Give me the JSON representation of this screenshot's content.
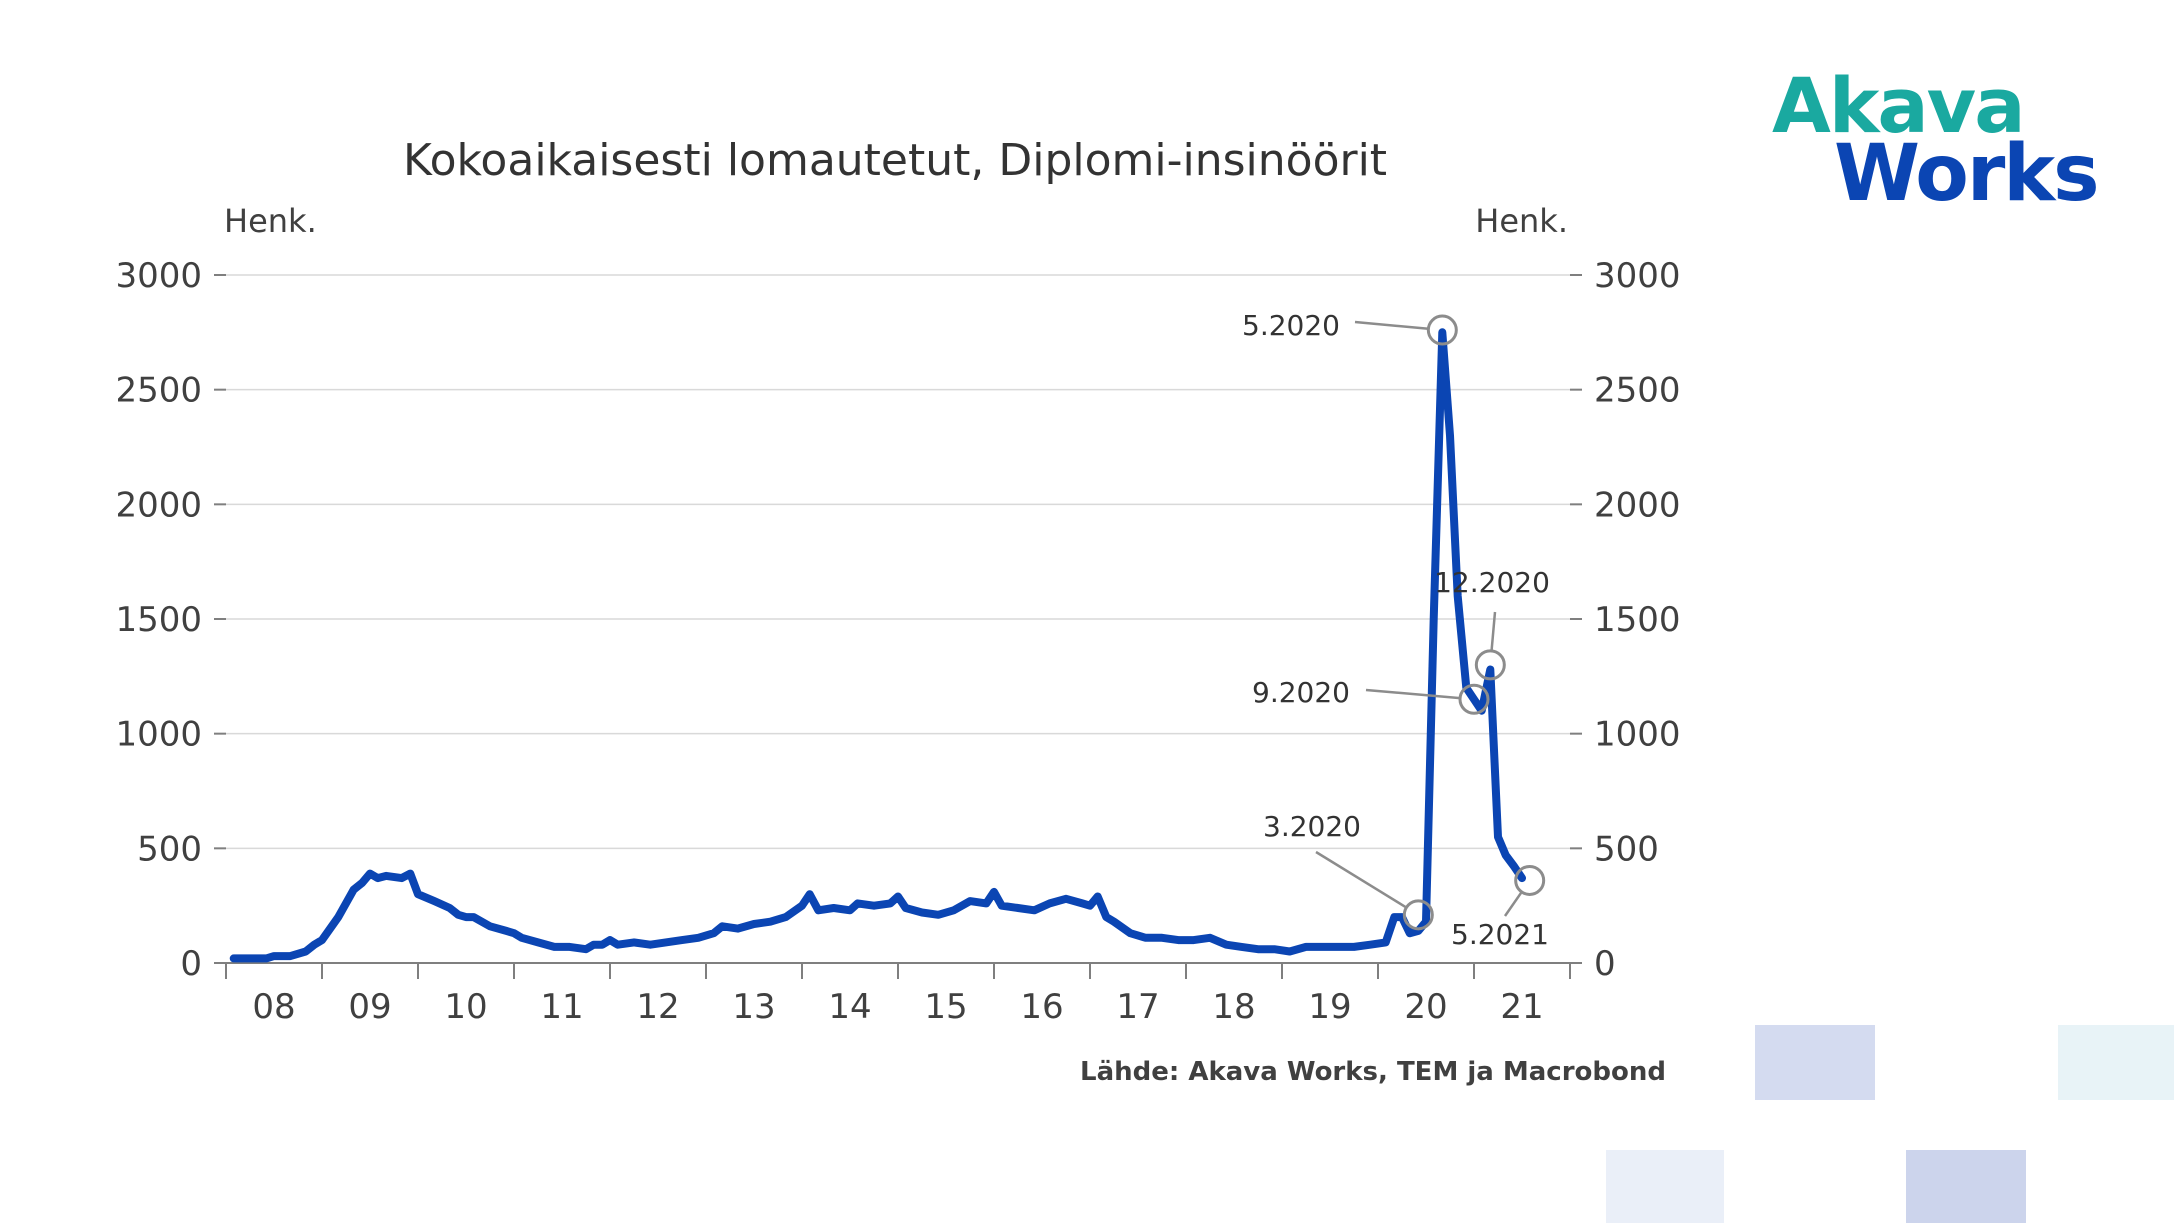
{
  "colors": {
    "line": "#0b45b3",
    "grid": "#d9d9d9",
    "axis": "#7f7f7f",
    "annotation": "#8c8c8c",
    "logo_teal": "#1aa9a0",
    "logo_blue": "#0b45b3"
  },
  "logo": {
    "line1": "Akava",
    "line2": "Works"
  },
  "source": "Lähde: Akava Works, TEM ja Macrobond",
  "chart_data": {
    "type": "line",
    "title": "Kokoaikaisesti lomautetut, Diplomi-insinöörit",
    "ylabel_left": "Henk.",
    "ylabel_right": "Henk.",
    "ylim": [
      0,
      3000
    ],
    "yticks": [
      0,
      500,
      1000,
      1500,
      2000,
      2500,
      3000
    ],
    "xlim": [
      2008.0,
      2022.0
    ],
    "x_tick_labels": [
      "08",
      "09",
      "10",
      "11",
      "12",
      "13",
      "14",
      "15",
      "16",
      "17",
      "18",
      "19",
      "20",
      "21"
    ],
    "grid": true,
    "legend": "none",
    "series": [
      {
        "points": [
          [
            2008.08,
            20
          ],
          [
            2008.25,
            20
          ],
          [
            2008.42,
            20
          ],
          [
            2008.5,
            30
          ],
          [
            2008.67,
            30
          ],
          [
            2008.83,
            50
          ],
          [
            2008.92,
            80
          ],
          [
            2009.0,
            100
          ],
          [
            2009.17,
            200
          ],
          [
            2009.33,
            320
          ],
          [
            2009.42,
            350
          ],
          [
            2009.5,
            390
          ],
          [
            2009.58,
            370
          ],
          [
            2009.67,
            380
          ],
          [
            2009.83,
            370
          ],
          [
            2009.92,
            390
          ],
          [
            2010.0,
            300
          ],
          [
            2010.17,
            270
          ],
          [
            2010.33,
            240
          ],
          [
            2010.42,
            210
          ],
          [
            2010.5,
            200
          ],
          [
            2010.58,
            200
          ],
          [
            2010.75,
            160
          ],
          [
            2010.92,
            140
          ],
          [
            2011.0,
            130
          ],
          [
            2011.08,
            110
          ],
          [
            2011.25,
            90
          ],
          [
            2011.42,
            70
          ],
          [
            2011.58,
            70
          ],
          [
            2011.75,
            60
          ],
          [
            2011.83,
            80
          ],
          [
            2011.92,
            80
          ],
          [
            2012.0,
            100
          ],
          [
            2012.08,
            80
          ],
          [
            2012.25,
            90
          ],
          [
            2012.42,
            80
          ],
          [
            2012.58,
            90
          ],
          [
            2012.75,
            100
          ],
          [
            2012.92,
            110
          ],
          [
            2013.08,
            130
          ],
          [
            2013.17,
            160
          ],
          [
            2013.33,
            150
          ],
          [
            2013.5,
            170
          ],
          [
            2013.67,
            180
          ],
          [
            2013.83,
            200
          ],
          [
            2014.0,
            250
          ],
          [
            2014.08,
            300
          ],
          [
            2014.17,
            230
          ],
          [
            2014.33,
            240
          ],
          [
            2014.5,
            230
          ],
          [
            2014.58,
            260
          ],
          [
            2014.75,
            250
          ],
          [
            2014.92,
            260
          ],
          [
            2015.0,
            290
          ],
          [
            2015.08,
            240
          ],
          [
            2015.25,
            220
          ],
          [
            2015.42,
            210
          ],
          [
            2015.58,
            230
          ],
          [
            2015.75,
            270
          ],
          [
            2015.92,
            260
          ],
          [
            2016.0,
            310
          ],
          [
            2016.08,
            250
          ],
          [
            2016.25,
            240
          ],
          [
            2016.42,
            230
          ],
          [
            2016.58,
            260
          ],
          [
            2016.75,
            280
          ],
          [
            2016.92,
            260
          ],
          [
            2017.0,
            250
          ],
          [
            2017.08,
            290
          ],
          [
            2017.17,
            200
          ],
          [
            2017.25,
            180
          ],
          [
            2017.42,
            130
          ],
          [
            2017.58,
            110
          ],
          [
            2017.75,
            110
          ],
          [
            2017.92,
            100
          ],
          [
            2018.08,
            100
          ],
          [
            2018.25,
            110
          ],
          [
            2018.42,
            80
          ],
          [
            2018.58,
            70
          ],
          [
            2018.75,
            60
          ],
          [
            2018.92,
            60
          ],
          [
            2019.08,
            50
          ],
          [
            2019.25,
            70
          ],
          [
            2019.42,
            70
          ],
          [
            2019.58,
            70
          ],
          [
            2019.75,
            70
          ],
          [
            2019.92,
            80
          ],
          [
            2020.08,
            90
          ],
          [
            2020.17,
            200
          ],
          [
            2020.25,
            200
          ],
          [
            2020.33,
            130
          ],
          [
            2020.42,
            140
          ],
          [
            2020.5,
            180
          ],
          [
            2020.58,
            1500
          ],
          [
            2020.67,
            2750
          ],
          [
            2020.75,
            2300
          ],
          [
            2020.83,
            1600
          ],
          [
            2020.92,
            1200
          ],
          [
            2021.0,
            1150
          ],
          [
            2021.08,
            1100
          ],
          [
            2021.17,
            1280
          ],
          [
            2021.25,
            550
          ],
          [
            2021.33,
            470
          ],
          [
            2021.42,
            420
          ],
          [
            2021.5,
            370
          ]
        ]
      }
    ],
    "annotations": [
      {
        "label": "5.2020",
        "x": 2020.67,
        "y": 2760
      },
      {
        "label": "12.2020",
        "x": 2021.17,
        "y": 1300
      },
      {
        "label": "9.2020",
        "x": 2021.0,
        "y": 1150
      },
      {
        "label": "3.2020",
        "x": 2020.42,
        "y": 210
      },
      {
        "label": "5.2021",
        "x": 2021.58,
        "y": 360
      }
    ]
  }
}
